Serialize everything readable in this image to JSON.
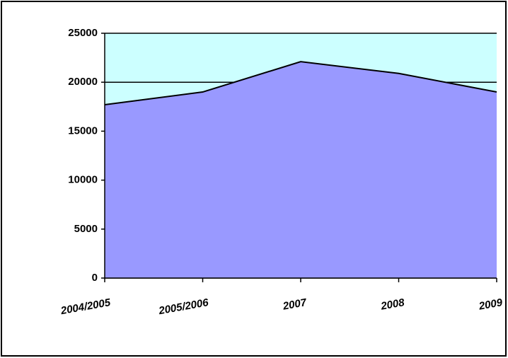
{
  "chart_data": {
    "type": "area",
    "categories": [
      "2004/2005",
      "2005/2006",
      "2007",
      "2008",
      "2009"
    ],
    "values": [
      17700,
      19000,
      22100,
      20900,
      19000
    ],
    "color": "#9999ff",
    "background": "#ccffff",
    "ylim": [
      0,
      25000
    ],
    "yticks": [
      0,
      5000,
      10000,
      15000,
      20000,
      25000
    ],
    "grid": true
  }
}
